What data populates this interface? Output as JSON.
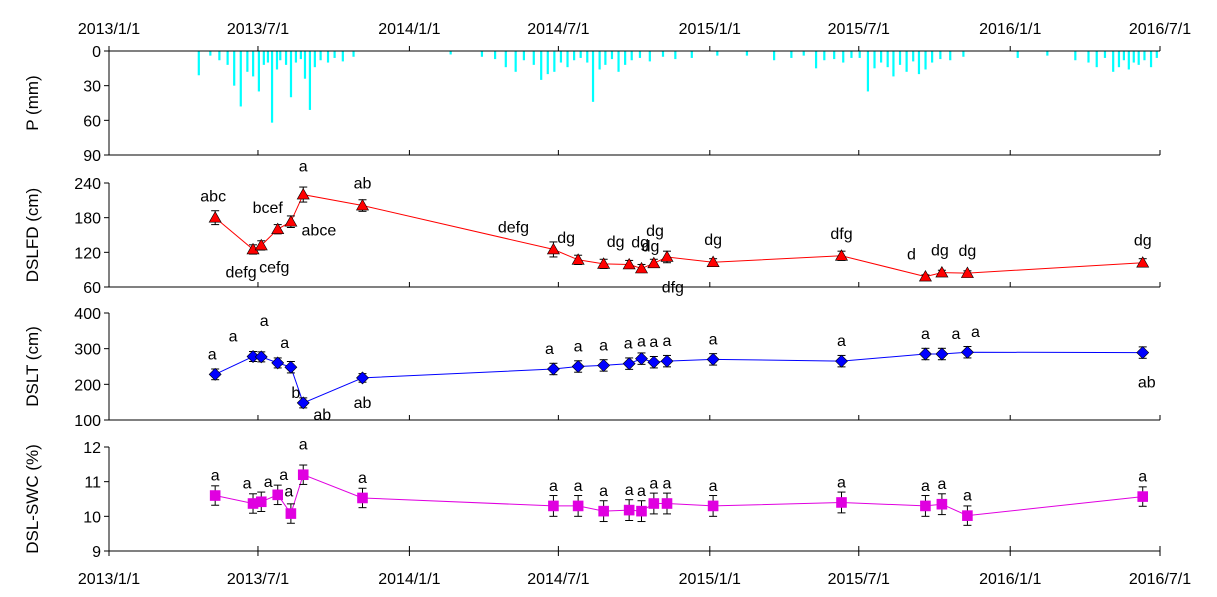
{
  "chart_data": {
    "type": "multi-panel time series",
    "date_ticks": [
      "2013/1/1",
      "2013/7/1",
      "2014/1/1",
      "2014/7/1",
      "2015/1/1",
      "2015/7/1",
      "2016/1/1",
      "2016/7/1"
    ],
    "xlim": [
      "2013/1/1",
      "2016/7/1"
    ],
    "panels": [
      {
        "key": "precip",
        "type": "bar",
        "ylabel": "P (mm)",
        "ylim": [
          0,
          90
        ],
        "y_inverted": true,
        "yticks": [
          0,
          30,
          60,
          90
        ],
        "color": "#00ffff",
        "series": [
          {
            "x": [
              "2013-04-20",
              "2013-05-04",
              "2013-05-15",
              "2013-05-25",
              "2013-06-02",
              "2013-06-10",
              "2013-06-18",
              "2013-06-25",
              "2013-07-02",
              "2013-07-08",
              "2013-07-13",
              "2013-07-18",
              "2013-07-24",
              "2013-07-28",
              "2013-08-04",
              "2013-08-10",
              "2013-08-16",
              "2013-08-22",
              "2013-08-27",
              "2013-09-02",
              "2013-09-08",
              "2013-09-15",
              "2013-09-24",
              "2013-10-02",
              "2013-10-12",
              "2013-10-25",
              "2014-02-20",
              "2014-03-30",
              "2014-04-15",
              "2014-04-28",
              "2014-05-10",
              "2014-05-20",
              "2014-06-01",
              "2014-06-10",
              "2014-06-18",
              "2014-06-26",
              "2014-07-04",
              "2014-07-12",
              "2014-07-20",
              "2014-07-28",
              "2014-08-05",
              "2014-08-12",
              "2014-08-20",
              "2014-08-27",
              "2014-09-04",
              "2014-09-12",
              "2014-09-20",
              "2014-09-28",
              "2014-10-08",
              "2014-10-20",
              "2014-11-05",
              "2014-11-20",
              "2014-12-10",
              "2015-01-10",
              "2015-02-15",
              "2015-03-20",
              "2015-04-10",
              "2015-04-25",
              "2015-05-10",
              "2015-05-20",
              "2015-06-01",
              "2015-06-12",
              "2015-06-22",
              "2015-07-02",
              "2015-07-12",
              "2015-07-20",
              "2015-07-28",
              "2015-08-05",
              "2015-08-12",
              "2015-08-20",
              "2015-08-28",
              "2015-09-05",
              "2015-09-12",
              "2015-09-20",
              "2015-09-28",
              "2015-10-08",
              "2015-10-20",
              "2015-11-05",
              "2016-01-10",
              "2016-02-15",
              "2016-03-20",
              "2016-04-05",
              "2016-04-15",
              "2016-04-25",
              "2016-05-05",
              "2016-05-12",
              "2016-05-18",
              "2016-05-24",
              "2016-05-30",
              "2016-06-05",
              "2016-06-12",
              "2016-06-20",
              "2016-06-27"
            ],
            "values": [
              21,
              4,
              8,
              12,
              30,
              48,
              18,
              22,
              35,
              12,
              10,
              62,
              16,
              8,
              12,
              40,
              10,
              7,
              24,
              51,
              14,
              8,
              10,
              6,
              9,
              5,
              3,
              5,
              7,
              14,
              18,
              8,
              12,
              25,
              20,
              18,
              10,
              14,
              8,
              6,
              10,
              44,
              16,
              12,
              7,
              18,
              12,
              8,
              6,
              9,
              5,
              7,
              6,
              4,
              4,
              8,
              6,
              4,
              15,
              8,
              7,
              10,
              6,
              6,
              35,
              15,
              10,
              14,
              22,
              12,
              18,
              9,
              20,
              16,
              10,
              7,
              8,
              5,
              6,
              4,
              8,
              10,
              14,
              6,
              18,
              14,
              8,
              16,
              10,
              12,
              8,
              14,
              6
            ]
          }
        ]
      },
      {
        "key": "dslfd",
        "type": "line",
        "ylabel": "DSLFD (cm)",
        "ylim": [
          60,
          240
        ],
        "yticks": [
          60,
          120,
          180,
          240
        ],
        "color": "#ff0000",
        "marker": "triangle",
        "series": [
          {
            "x": [
              "2013-05-10",
              "2013-06-25",
              "2013-07-05",
              "2013-07-25",
              "2013-08-10",
              "2013-08-25",
              "2013-11-05",
              "2014-06-25",
              "2014-07-25",
              "2014-08-25",
              "2014-09-25",
              "2014-10-10",
              "2014-10-25",
              "2014-11-10",
              "2015-01-05",
              "2015-06-10",
              "2015-09-20",
              "2015-10-10",
              "2015-11-10",
              "2016-06-10"
            ],
            "values": [
              180,
              125,
              132,
              160,
              173,
              220,
              201,
              125,
              107,
              100,
              99,
              92,
              101,
              112,
              103,
              114,
              78,
              85,
              84,
              102
            ],
            "errors": [
              12,
              8,
              8,
              8,
              10,
              13,
              10,
              13,
              8,
              8,
              7,
              7,
              7,
              10,
              6,
              8,
              3,
              4,
              4,
              7
            ]
          }
        ],
        "letters": [
          "abc",
          "defg",
          "cefg",
          "bcef",
          "abce",
          "a",
          "ab",
          "defg",
          "dg",
          "dg",
          "dg",
          "dg",
          "dfg",
          "dg",
          "dg",
          "dfg",
          "d",
          "dg",
          "dg",
          "dg"
        ]
      },
      {
        "key": "dslt",
        "type": "line",
        "ylabel": "DSLT (cm)",
        "ylim": [
          100,
          400
        ],
        "yticks": [
          100,
          200,
          300,
          400
        ],
        "color": "#0000ff",
        "marker": "diamond",
        "series": [
          {
            "x": [
              "2013-05-10",
              "2013-06-25",
              "2013-07-05",
              "2013-07-25",
              "2013-08-10",
              "2013-08-25",
              "2013-11-05",
              "2014-06-25",
              "2014-07-25",
              "2014-08-25",
              "2014-09-25",
              "2014-10-10",
              "2014-10-25",
              "2014-11-10",
              "2015-01-05",
              "2015-06-10",
              "2015-09-20",
              "2015-10-10",
              "2015-11-10",
              "2016-06-10"
            ],
            "values": [
              228,
              278,
              277,
              260,
              248,
              148,
              218,
              243,
              250,
              253,
              258,
              272,
              262,
              265,
              270,
              265,
              285,
              285,
              290,
              289
            ],
            "errors": [
              15,
              14,
              14,
              14,
              16,
              14,
              12,
              16,
              16,
              16,
              16,
              16,
              16,
              16,
              16,
              16,
              16,
              16,
              16,
              16
            ]
          }
        ],
        "letters": [
          "a",
          "a",
          "a",
          "a",
          "b",
          "ab",
          "ab",
          "a",
          "a",
          "a",
          "a",
          "a",
          "a",
          "a",
          "a",
          "a",
          "a",
          "a",
          "a",
          "ab"
        ]
      },
      {
        "key": "swc",
        "type": "line",
        "ylabel": "DSL-SWC (%)",
        "ylim": [
          9,
          12
        ],
        "yticks": [
          9,
          10,
          11,
          12
        ],
        "color": "#e000e0",
        "marker": "square",
        "series": [
          {
            "x": [
              "2013-05-10",
              "2013-06-25",
              "2013-07-05",
              "2013-07-25",
              "2013-08-10",
              "2013-08-25",
              "2013-11-05",
              "2014-06-25",
              "2014-07-25",
              "2014-08-25",
              "2014-09-25",
              "2014-10-10",
              "2014-10-25",
              "2014-11-10",
              "2015-01-05",
              "2015-06-10",
              "2015-09-20",
              "2015-10-10",
              "2015-11-10",
              "2016-06-10"
            ],
            "values": [
              10.6,
              10.37,
              10.42,
              10.62,
              10.08,
              11.2,
              10.53,
              10.3,
              10.3,
              10.15,
              10.18,
              10.15,
              10.37,
              10.37,
              10.3,
              10.4,
              10.3,
              10.35,
              10.02,
              10.57
            ],
            "errors": [
              0.28,
              0.28,
              0.28,
              0.28,
              0.28,
              0.28,
              0.28,
              0.3,
              0.3,
              0.3,
              0.3,
              0.3,
              0.3,
              0.3,
              0.3,
              0.3,
              0.3,
              0.3,
              0.28,
              0.28
            ]
          }
        ],
        "letters": [
          "a",
          "a",
          "a",
          "a",
          "a",
          "a",
          "a",
          "a",
          "a",
          "a",
          "a",
          "a",
          "a",
          "a",
          "a",
          "a",
          "a",
          "a",
          "a",
          "a"
        ]
      }
    ]
  }
}
